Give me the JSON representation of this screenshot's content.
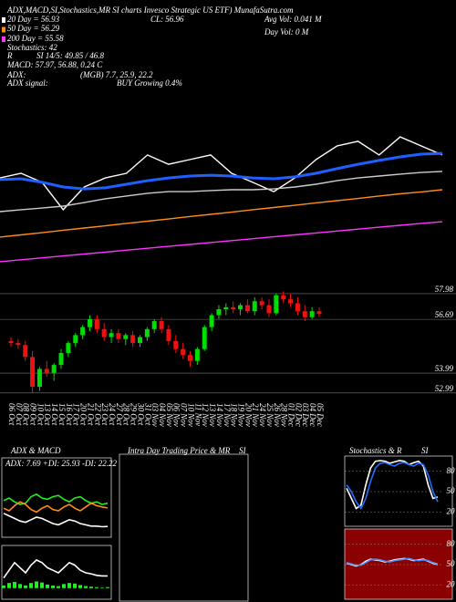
{
  "chart_data": [
    {
      "type": "line",
      "annotations": [
        "ADX,MACD,SI,Stochastics,MR SI charts Invesco Strategic US ETF) MunafaSutra.com",
        "20 Day = 56.93",
        "50 Day = 56.29",
        "200 Day = 55.58",
        "Stochastics: 42",
        "R",
        "SI 14/5: 49.85 / 46.8",
        "MACD: 57.97, 56.88, 0.24  C",
        "ADX:",
        "(MGB) 7.7, 25.9, 22.2",
        "ADX signal:",
        "BUY Growing 0.4%",
        "CL: 56.96",
        "Avg Vol: 0.041 M",
        "Day Vol: 0 M"
      ],
      "ylim": [
        50,
        60
      ],
      "series": [
        {
          "color": "#ffffff",
          "values": [
            53.83,
            54.0,
            53.67,
            52.67,
            53.5,
            53.83,
            54.0,
            54.67,
            54.33,
            54.5,
            54.67,
            54.0,
            53.67,
            53.33,
            53.83,
            54.5,
            55.0,
            55.17,
            54.67,
            55.33,
            55.0,
            54.67
          ]
        },
        {
          "color": "#1f5fff",
          "values": [
            53.77,
            53.8,
            53.67,
            53.5,
            53.43,
            53.47,
            53.6,
            53.73,
            53.83,
            53.9,
            53.93,
            53.9,
            53.83,
            53.8,
            53.87,
            54.0,
            54.17,
            54.33,
            54.47,
            54.6,
            54.7,
            54.73
          ]
        },
        {
          "color": "#cccccc",
          "values": [
            52.6,
            52.67,
            52.73,
            52.8,
            52.93,
            53.07,
            53.17,
            53.27,
            53.33,
            53.33,
            53.37,
            53.4,
            53.4,
            53.43,
            53.5,
            53.6,
            53.73,
            53.83,
            53.9,
            53.97,
            54.03,
            54.07
          ]
        },
        {
          "color": "#ff8c1a",
          "values": [
            51.67,
            51.75,
            51.83,
            51.92,
            52.0,
            52.08,
            52.17,
            52.25,
            52.33,
            52.42,
            52.5,
            52.58,
            52.67,
            52.75,
            52.83,
            52.92,
            53.0,
            53.08,
            53.17,
            53.25,
            53.32,
            53.4
          ]
        },
        {
          "color": "#ff33ff",
          "values": [
            50.77,
            50.84,
            50.91,
            50.98,
            51.05,
            51.12,
            51.19,
            51.26,
            51.33,
            51.4,
            51.47,
            51.54,
            51.61,
            51.68,
            51.75,
            51.82,
            51.89,
            51.96,
            52.03,
            52.1,
            52.17,
            52.23
          ]
        }
      ]
    },
    {
      "type": "candlestick",
      "categories": [
        "06 Oct",
        "07 Oct",
        "08 Oct",
        "09 Oct",
        "10 Oct",
        "13 Oct",
        "14 Oct",
        "15 Oct",
        "16 Oct",
        "17 Oct",
        "20 Oct",
        "21 Oct",
        "22 Oct",
        "23 Oct",
        "24 Oct",
        "27 Oct",
        "28 Oct",
        "29 Oct",
        "30 Oct",
        "31 Oct",
        "03 Nov",
        "04 Nov",
        "05 Nov",
        "06 Nov",
        "07 Nov",
        "10 Nov",
        "11 Nov",
        "12 Nov",
        "13 Nov",
        "14 Nov",
        "17 Nov",
        "18 Nov",
        "19 Nov",
        "20 Nov",
        "21 Nov",
        "24 Nov",
        "25 Nov",
        "26 Nov",
        "28 Nov",
        "01 Dec",
        "02 Dec",
        "03 Dec",
        "04 Dec",
        "05 Dec"
      ],
      "open": [
        55.6,
        55.5,
        55.4,
        54.8,
        53.3,
        54.2,
        54.0,
        54.4,
        55.0,
        55.5,
        55.9,
        56.3,
        56.7,
        56.2,
        55.8,
        56.0,
        55.7,
        55.9,
        55.5,
        55.8,
        56.2,
        56.6,
        56.2,
        55.6,
        55.2,
        54.9,
        54.6,
        55.2,
        56.3,
        56.9,
        57.2,
        57.3,
        57.2,
        57.4,
        57.1,
        57.6,
        57.4,
        57.0,
        57.9,
        57.7,
        57.5,
        57.1,
        56.8,
        57.1
      ],
      "high": [
        55.8,
        55.7,
        55.6,
        55.1,
        54.3,
        54.6,
        54.5,
        55.2,
        55.6,
        56.0,
        56.4,
        56.9,
        56.9,
        56.5,
        56.2,
        56.2,
        56.0,
        56.1,
        55.9,
        56.3,
        56.7,
        56.8,
        56.4,
        55.9,
        55.5,
        55.1,
        55.3,
        56.4,
        57.0,
        57.4,
        57.5,
        57.6,
        57.5,
        57.7,
        57.8,
        57.8,
        57.7,
        58.0,
        58.1,
        58.0,
        57.8,
        57.4,
        57.3,
        57.3
      ],
      "low": [
        55.3,
        55.2,
        54.6,
        53.0,
        53.1,
        53.8,
        53.6,
        54.2,
        54.8,
        55.3,
        55.7,
        56.1,
        56.0,
        55.6,
        55.5,
        55.5,
        55.4,
        55.3,
        55.3,
        55.6,
        56.0,
        56.0,
        55.4,
        55.0,
        54.7,
        54.3,
        54.4,
        55.1,
        56.1,
        56.7,
        56.9,
        57.0,
        56.9,
        57.0,
        56.9,
        57.2,
        56.8,
        56.9,
        57.5,
        57.3,
        56.9,
        56.6,
        56.7,
        56.8
      ],
      "close": [
        55.5,
        55.4,
        54.8,
        53.3,
        54.2,
        54.0,
        54.4,
        55.0,
        55.5,
        55.9,
        56.3,
        56.7,
        56.2,
        55.8,
        56.0,
        55.7,
        55.9,
        55.5,
        55.8,
        56.2,
        56.6,
        56.2,
        55.6,
        55.2,
        54.9,
        54.6,
        55.2,
        56.3,
        56.9,
        57.2,
        57.3,
        57.2,
        57.4,
        57.1,
        57.6,
        57.4,
        57.0,
        57.9,
        57.7,
        57.5,
        57.1,
        56.8,
        57.1,
        56.96
      ],
      "up_color": "#00dd00",
      "down_color": "#ee1111",
      "ylim": [
        52.8,
        58.3
      ],
      "yticks": [
        57.98,
        56.69,
        53.99,
        52.99
      ]
    },
    {
      "type": "line",
      "title": "ADX  & MACD",
      "subtitle": "ADX: 7.69  +DI: 25.93  -DI: 22.22",
      "ylim": [
        0,
        50
      ],
      "series": [
        {
          "color": "#22ee22",
          "values": [
            28,
            30,
            27,
            25,
            26,
            31,
            33,
            30,
            29,
            31,
            32,
            29,
            27,
            30,
            31,
            28,
            26,
            27,
            25,
            25.93
          ]
        },
        {
          "color": "#ff8c1a",
          "values": [
            22,
            20,
            24,
            27,
            25,
            21,
            19,
            22,
            24,
            21,
            20,
            23,
            25,
            22,
            20,
            23,
            26,
            24,
            23,
            22.22
          ]
        },
        {
          "color": "#ffffff",
          "values": [
            18,
            16,
            14,
            12,
            11,
            13,
            15,
            14,
            12,
            10,
            9,
            11,
            13,
            12,
            10,
            9,
            8,
            8,
            7.5,
            7.69
          ]
        }
      ]
    },
    {
      "type": "line",
      "ylim": [
        -0.2,
        0.8
      ],
      "series": [
        {
          "color": "#22ee22",
          "kind": "bar",
          "values": [
            0.05,
            0.1,
            0.12,
            0.08,
            0.05,
            0.1,
            0.13,
            0.11,
            0.07,
            0.05,
            0.04,
            0.08,
            0.1,
            0.09,
            0.06,
            0.04,
            0.03,
            0.02,
            0.01,
            0.02
          ]
        },
        {
          "color": "#ffffff",
          "values": [
            0.2,
            0.35,
            0.5,
            0.4,
            0.3,
            0.45,
            0.55,
            0.5,
            0.4,
            0.35,
            0.3,
            0.4,
            0.5,
            0.45,
            0.35,
            0.3,
            0.28,
            0.25,
            0.24,
            0.24
          ]
        }
      ]
    },
    {
      "type": "empty",
      "title": "Intra Day Trading Price  & MR",
      "title2": "SI"
    },
    {
      "type": "line",
      "title": "Stochastics & R",
      "title2": "SI",
      "ylim": [
        0,
        100
      ],
      "yticks": [
        20,
        50,
        80
      ],
      "background": "#000000",
      "series": [
        {
          "color": "#ffffff",
          "values": [
            55,
            40,
            25,
            30,
            60,
            85,
            95,
            96,
            95,
            92,
            94,
            96,
            95,
            90,
            93,
            95,
            88,
            60,
            40,
            42
          ]
        },
        {
          "color": "#1f6fff",
          "values": [
            60,
            50,
            35,
            25,
            40,
            65,
            85,
            92,
            93,
            90,
            88,
            92,
            93,
            90,
            88,
            92,
            90,
            75,
            50,
            35
          ]
        }
      ]
    },
    {
      "type": "line",
      "ylim": [
        0,
        100
      ],
      "yticks": [
        20,
        50,
        80
      ],
      "background": "#8b0000",
      "series": [
        {
          "color": "#ffffff",
          "values": [
            52,
            50,
            48,
            50,
            55,
            58,
            57,
            56,
            54,
            55,
            57,
            58,
            59,
            58,
            56,
            57,
            58,
            55,
            52,
            50
          ]
        },
        {
          "color": "#4a8cff",
          "values": [
            53,
            51,
            49,
            49,
            53,
            57,
            58,
            57,
            55,
            54,
            56,
            57,
            58,
            59,
            57,
            56,
            57,
            56,
            53,
            51
          ]
        }
      ]
    }
  ]
}
